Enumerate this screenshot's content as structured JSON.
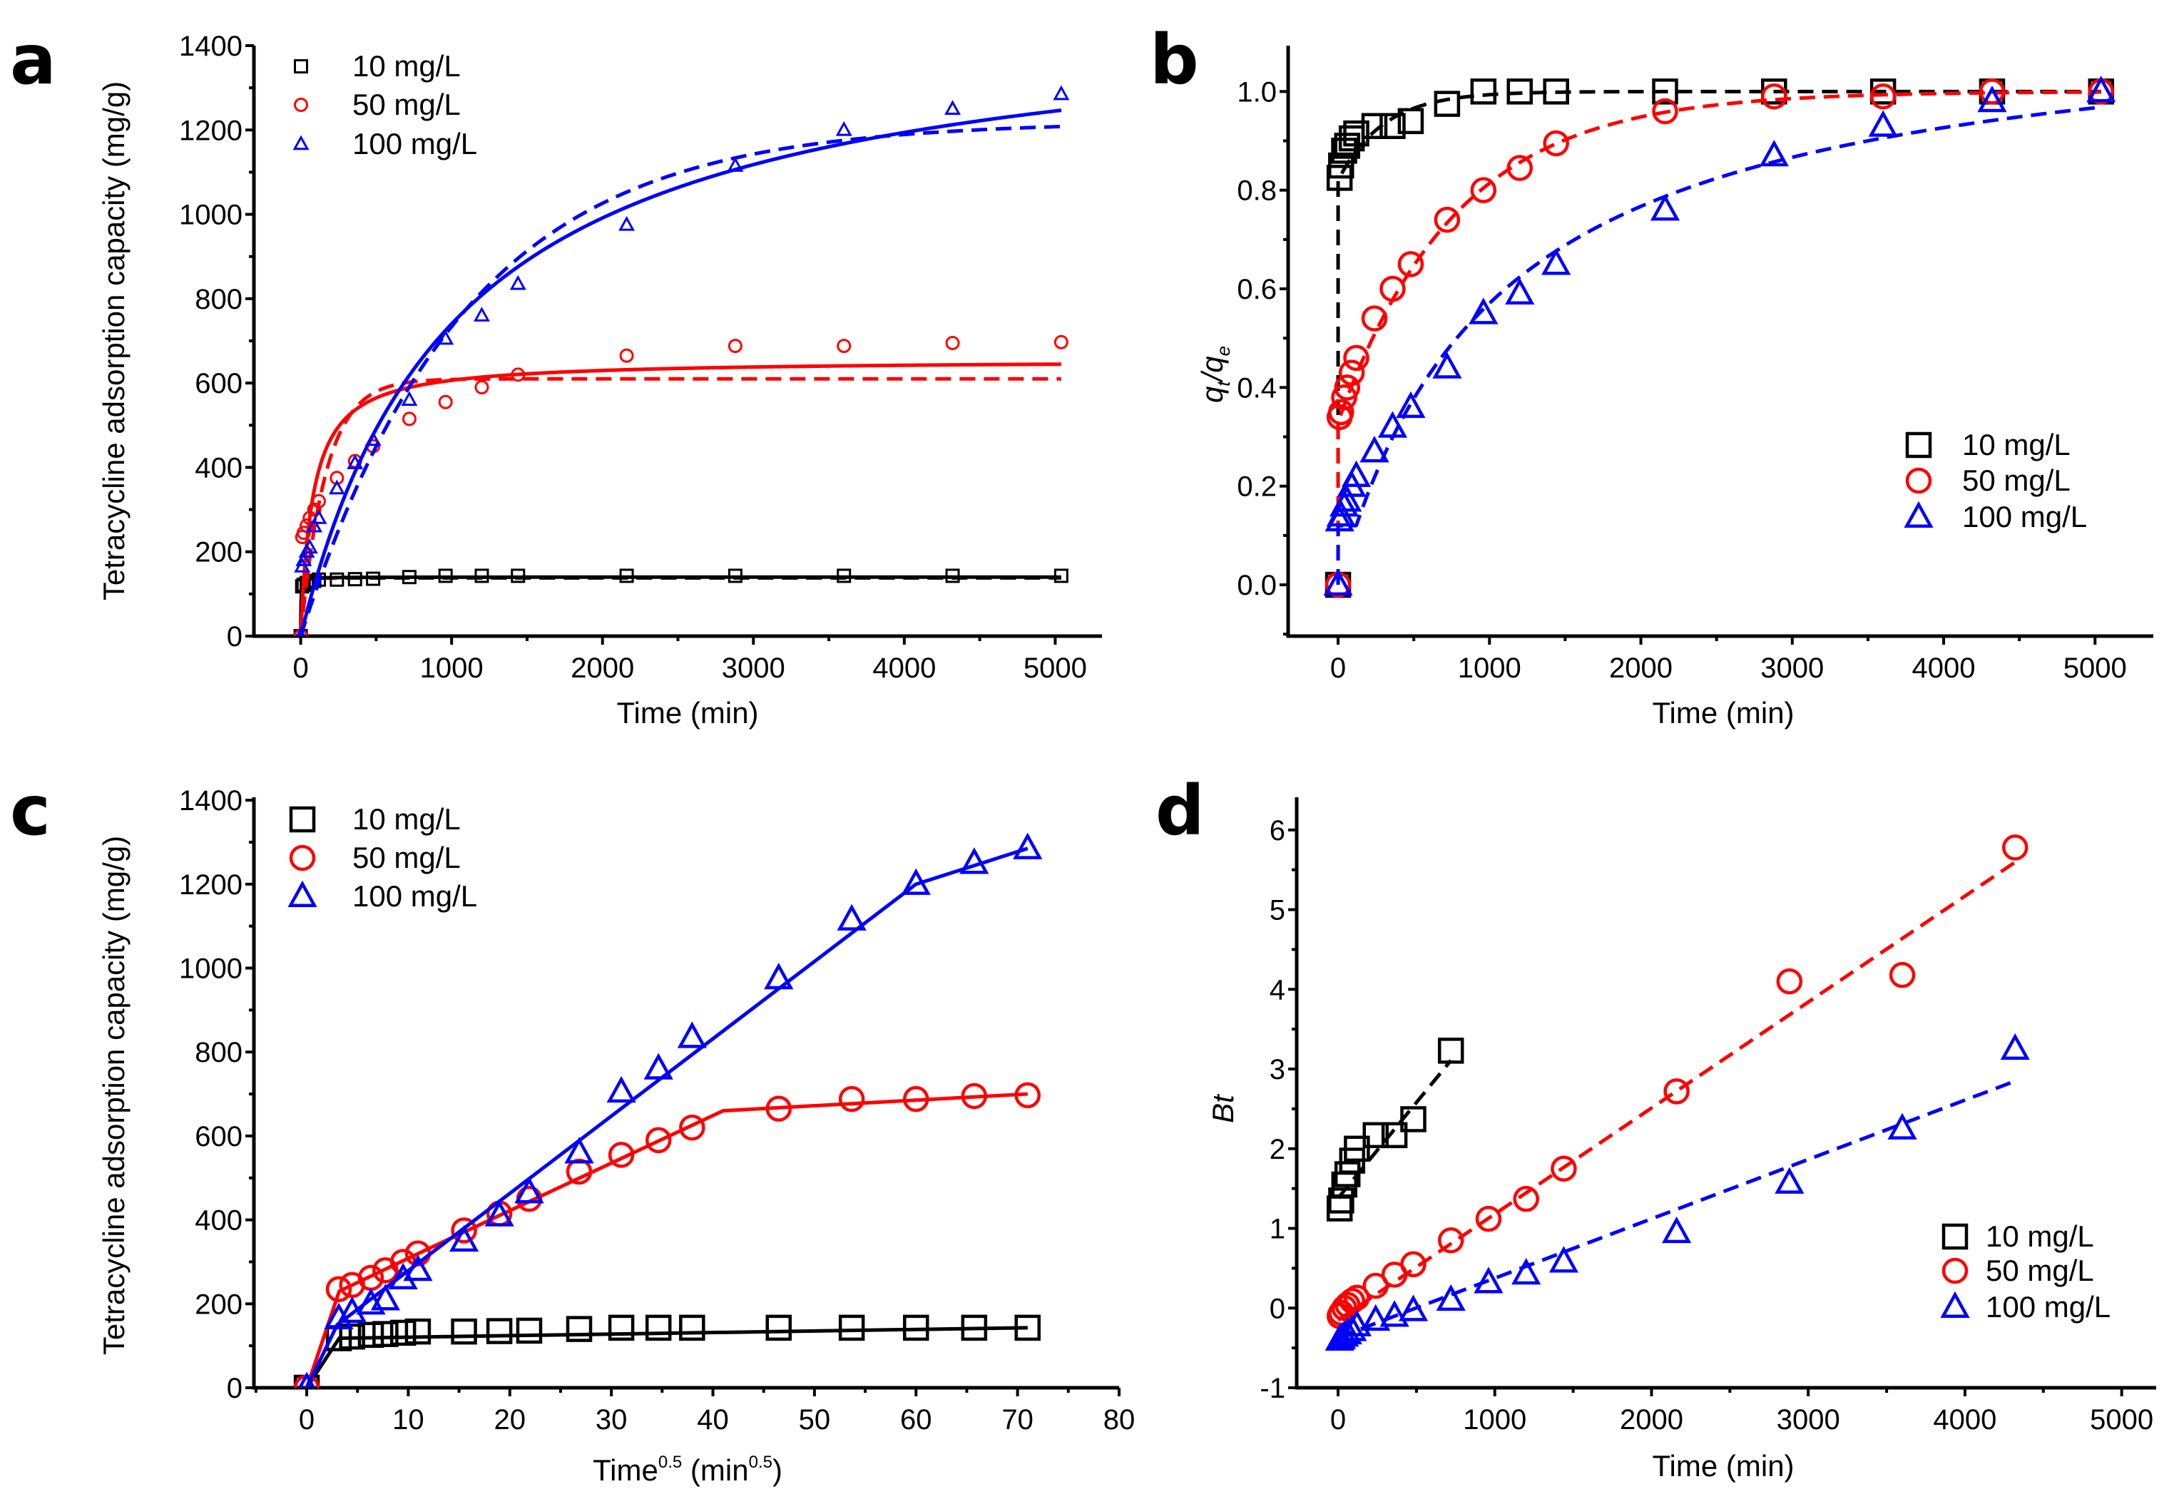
{
  "colors": {
    "s10": "#000000",
    "s50": "#ff0000",
    "s100": "#0000ff"
  },
  "chart_data": [
    {
      "panel": "a",
      "type": "scatter",
      "xlabel": "Time (min)",
      "ylabel": "Tetracycline adsorption capacity (mg/g)",
      "xlim": [
        -310,
        5310
      ],
      "ylim": [
        0,
        1400
      ],
      "xticks": [
        0,
        1000,
        2000,
        3000,
        4000,
        5000
      ],
      "xminor": 500,
      "yticks": [
        0,
        200,
        400,
        600,
        800,
        1000,
        1200,
        1400
      ],
      "yminor": 100,
      "legend": "top-left",
      "series": [
        {
          "name": "10 mg/L",
          "color": "#000000",
          "marker": "square",
          "x": [
            0,
            10,
            20,
            40,
            60,
            90,
            120,
            240,
            360,
            480,
            720,
            960,
            1200,
            1440,
            2160,
            2880,
            3600,
            4320,
            5040
          ],
          "y": [
            0,
            118,
            122,
            126,
            128,
            131,
            134,
            134,
            135,
            136,
            140,
            143,
            143,
            143,
            143,
            143,
            143,
            143,
            143
          ],
          "fits": [
            {
              "style": "solid",
              "model": "pseudo-second-order",
              "qe": 140,
              "t_half": 2
            },
            {
              "style": "dashed",
              "model": "pseudo-first-order",
              "qe": 138,
              "k": 0.1
            }
          ]
        },
        {
          "name": "50 mg/L",
          "color": "#ff0000",
          "marker": "circle",
          "x": [
            0,
            10,
            20,
            40,
            60,
            90,
            120,
            240,
            360,
            480,
            720,
            960,
            1200,
            1440,
            2160,
            2880,
            3600,
            4320,
            5040
          ],
          "y": [
            0,
            235,
            245,
            262,
            280,
            300,
            320,
            375,
            415,
            450,
            515,
            555,
            590,
            620,
            665,
            688,
            688,
            695,
            697
          ],
          "fits": [
            {
              "style": "solid",
              "model": "pseudo-second-order",
              "qe": 655,
              "t_half": 80
            },
            {
              "style": "dashed",
              "model": "pseudo-first-order",
              "qe": 610,
              "k": 0.006
            }
          ]
        },
        {
          "name": "100 mg/L",
          "color": "#0000ff",
          "marker": "triangle",
          "x": [
            0,
            10,
            20,
            40,
            60,
            90,
            120,
            240,
            360,
            480,
            720,
            960,
            1200,
            1440,
            2160,
            2880,
            3600,
            4320,
            5040
          ],
          "y": [
            0,
            165,
            180,
            200,
            210,
            260,
            280,
            350,
            410,
            465,
            560,
            705,
            760,
            835,
            975,
            1115,
            1200,
            1250,
            1285
          ],
          "fits": [
            {
              "style": "solid",
              "model": "pseudo-second-order",
              "qe": 1501,
              "t_half": 1028
            },
            {
              "style": "dashed",
              "model": "pseudo-first-order",
              "qe": 1220,
              "k": 0.00092
            }
          ]
        }
      ]
    },
    {
      "panel": "b",
      "type": "scatter",
      "xlabel": "Time (min)",
      "ylabel": "qt/qe",
      "ylabel_parts": [
        {
          "t": "q",
          "k": "i"
        },
        {
          "t": "t",
          "k": "sub"
        },
        {
          "t": "/",
          "k": "i"
        },
        {
          "t": "q",
          "k": "i"
        },
        {
          "t": "e",
          "k": "sub"
        }
      ],
      "xlim": [
        -330,
        5385
      ],
      "ylim": [
        -0.104,
        1.093
      ],
      "xticks": [
        0,
        1000,
        2000,
        3000,
        4000,
        5000
      ],
      "xminor": 500,
      "yticks": [
        0.0,
        0.2,
        0.4,
        0.6,
        0.8,
        1.0
      ],
      "ytick_labels": [
        "0.0",
        "0.2",
        "0.4",
        "0.6",
        "0.8",
        "1.0"
      ],
      "yminor": 0.1,
      "legend": "bottom-right",
      "series": [
        {
          "name": "10 mg/L",
          "color": "#000000",
          "marker": "square",
          "x": [
            0,
            10,
            20,
            40,
            60,
            90,
            120,
            240,
            360,
            480,
            720,
            960,
            1200,
            1440,
            2160,
            2880,
            3600,
            4320,
            5040
          ],
          "y": [
            0,
            0.825,
            0.85,
            0.88,
            0.89,
            0.905,
            0.915,
            0.93,
            0.93,
            0.94,
            0.975,
            1.0,
            1.0,
            1.0,
            1.0,
            1.0,
            1.0,
            1.0,
            1.0
          ],
          "fits": [
            {
              "style": "dashed",
              "model": "offset-exp",
              "a": 0.82,
              "b": 0.18,
              "tau": 300
            }
          ]
        },
        {
          "name": "50 mg/L",
          "color": "#ff0000",
          "marker": "circle",
          "x": [
            0,
            10,
            20,
            40,
            60,
            90,
            120,
            240,
            360,
            480,
            720,
            960,
            1200,
            1440,
            2160,
            2880,
            3600,
            4320,
            5040
          ],
          "y": [
            0,
            0.34,
            0.35,
            0.38,
            0.4,
            0.43,
            0.46,
            0.54,
            0.6,
            0.65,
            0.74,
            0.8,
            0.845,
            0.895,
            0.96,
            0.99,
            0.99,
            1.0,
            1.0
          ],
          "fits": [
            {
              "style": "dashed",
              "model": "offset-exp",
              "a": 0.33,
              "b": 0.67,
              "tau": 780
            }
          ]
        },
        {
          "name": "100 mg/L",
          "color": "#0000ff",
          "marker": "triangle",
          "x": [
            0,
            10,
            20,
            40,
            60,
            90,
            120,
            240,
            360,
            480,
            720,
            960,
            1200,
            1440,
            2160,
            2880,
            3600,
            4320,
            5040
          ],
          "y": [
            0,
            0.13,
            0.14,
            0.16,
            0.17,
            0.2,
            0.22,
            0.27,
            0.32,
            0.36,
            0.44,
            0.55,
            0.59,
            0.65,
            0.76,
            0.87,
            0.93,
            0.98,
            1.0
          ],
          "fits": [
            {
              "style": "dashed",
              "model": "hyperbolic",
              "a": 1.17,
              "t_half": 1050,
              "y0": 0.12
            }
          ]
        }
      ]
    },
    {
      "panel": "c",
      "type": "scatter",
      "xlabel": "Time0.5 (min0.5)",
      "xlabel_parts": [
        {
          "t": "Time",
          "k": "n"
        },
        {
          "t": "0.5",
          "k": "sup"
        },
        {
          "t": " (min",
          "k": "n"
        },
        {
          "t": "0.5",
          "k": "sup"
        },
        {
          "t": ")",
          "k": "n"
        }
      ],
      "ylabel": "Tetracycline adsorption capacity (mg/g)",
      "xlim": [
        -5.2,
        80
      ],
      "ylim": [
        0,
        1407
      ],
      "xticks": [
        0,
        10,
        20,
        30,
        40,
        50,
        60,
        70,
        80
      ],
      "xminor": 5,
      "yticks": [
        0,
        200,
        400,
        600,
        800,
        1000,
        1200,
        1400
      ],
      "yminor": 100,
      "legend": "top-left",
      "series": [
        {
          "name": "10 mg/L",
          "color": "#000000",
          "marker": "square",
          "x": [
            0,
            3.16,
            4.47,
            6.32,
            7.75,
            9.49,
            10.95,
            15.49,
            18.97,
            21.91,
            26.83,
            30.98,
            34.64,
            37.95,
            46.48,
            53.67,
            60,
            65.73,
            70.99
          ],
          "y": [
            0,
            118,
            122,
            126,
            128,
            131,
            134,
            134,
            135,
            136,
            140,
            143,
            143,
            143,
            143,
            143,
            143,
            143,
            143
          ],
          "fits": [
            {
              "style": "solid",
              "model": "piecewise-linear",
              "px": [
                0,
                3.2,
                71
              ],
              "py": [
                0,
                118,
                143
              ]
            }
          ]
        },
        {
          "name": "50 mg/L",
          "color": "#ff0000",
          "marker": "circle",
          "x": [
            0,
            3.16,
            4.47,
            6.32,
            7.75,
            9.49,
            10.95,
            15.49,
            18.97,
            21.91,
            26.83,
            30.98,
            34.64,
            37.95,
            46.48,
            53.67,
            60,
            65.73,
            70.99
          ],
          "y": [
            0,
            235,
            245,
            262,
            280,
            300,
            320,
            375,
            415,
            450,
            515,
            555,
            590,
            620,
            665,
            688,
            688,
            695,
            697
          ],
          "fits": [
            {
              "style": "solid",
              "model": "piecewise-linear",
              "px": [
                0,
                3.2,
                11,
                41,
                71
              ],
              "py": [
                0,
                230,
                320,
                660,
                700
              ]
            }
          ]
        },
        {
          "name": "100 mg/L",
          "color": "#0000ff",
          "marker": "triangle",
          "x": [
            0,
            3.16,
            4.47,
            6.32,
            7.75,
            9.49,
            10.95,
            15.49,
            18.97,
            21.91,
            26.83,
            30.98,
            34.64,
            37.95,
            46.48,
            53.67,
            60,
            65.73,
            70.99
          ],
          "y": [
            0,
            165,
            180,
            200,
            210,
            260,
            280,
            350,
            410,
            465,
            560,
            705,
            760,
            835,
            975,
            1115,
            1200,
            1250,
            1285
          ],
          "fits": [
            {
              "style": "solid",
              "model": "piecewise-linear",
              "px": [
                0,
                3,
                60,
                71
              ],
              "py": [
                0,
                150,
                1200,
                1285
              ]
            }
          ]
        }
      ]
    },
    {
      "panel": "d",
      "type": "scatter",
      "xlabel": "Time (min)",
      "ylabel": "Bt",
      "xlim": [
        -264,
        5220
      ],
      "ylim": [
        -1,
        6.41
      ],
      "xticks": [
        0,
        1000,
        2000,
        3000,
        4000,
        5000
      ],
      "xminor": 500,
      "yticks": [
        -1,
        0,
        1,
        2,
        3,
        4,
        5,
        6
      ],
      "yminor": 0.5,
      "legend": "bottom-right",
      "series": [
        {
          "name": "10 mg/L",
          "color": "#000000",
          "marker": "square",
          "x": [
            10,
            20,
            40,
            60,
            90,
            120,
            240,
            360,
            480,
            720
          ],
          "y": [
            1.25,
            1.35,
            1.55,
            1.68,
            1.85,
            2.0,
            2.17,
            2.17,
            2.37,
            3.23
          ],
          "fits": [
            {
              "style": "dashed",
              "model": "linear",
              "x0": 0,
              "x1": 720,
              "intercept": 1.38,
              "slope": 0.0024
            }
          ]
        },
        {
          "name": "50 mg/L",
          "color": "#ff0000",
          "marker": "circle",
          "x": [
            10,
            20,
            40,
            60,
            90,
            120,
            240,
            360,
            480,
            720,
            960,
            1200,
            1440,
            2160,
            2880,
            3600,
            4320
          ],
          "y": [
            -0.1,
            -0.06,
            0,
            0.04,
            0.09,
            0.13,
            0.28,
            0.42,
            0.55,
            0.85,
            1.12,
            1.37,
            1.75,
            2.72,
            4.1,
            4.18,
            5.78
          ],
          "fits": [
            {
              "style": "dashed",
              "model": "linear",
              "x0": 0,
              "x1": 4320,
              "intercept": -0.15,
              "slope": 0.00133
            }
          ]
        },
        {
          "name": "100 mg/L",
          "color": "#0000ff",
          "marker": "triangle",
          "x": [
            10,
            20,
            40,
            60,
            90,
            120,
            240,
            360,
            480,
            720,
            960,
            1200,
            1440,
            2160,
            2880,
            3600,
            4320
          ],
          "y": [
            -0.4,
            -0.38,
            -0.35,
            -0.32,
            -0.28,
            -0.22,
            -0.15,
            -0.1,
            -0.03,
            0.1,
            0.32,
            0.43,
            0.58,
            0.95,
            1.57,
            2.25,
            3.25
          ],
          "fits": [
            {
              "style": "dashed",
              "model": "linear",
              "x0": 0,
              "x1": 4320,
              "intercept": -0.37,
              "slope": 0.000745
            }
          ]
        }
      ]
    }
  ]
}
